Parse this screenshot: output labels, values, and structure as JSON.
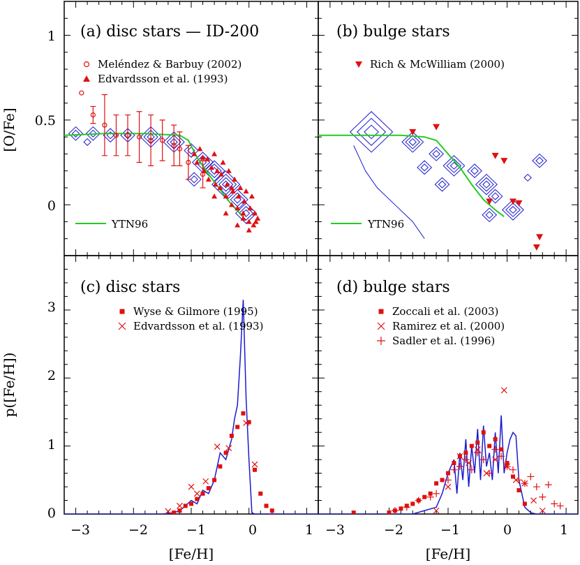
{
  "figure": {
    "xlabel": "[Fe/H]",
    "ylabel_top": "[O/Fe]",
    "ylabel_bottom": "p([Fe/H])",
    "colors": {
      "model": "#1a1ad0",
      "data": "#e01010",
      "ytn": "#22cc22",
      "axes": "#000000"
    }
  },
  "chart_data": [
    {
      "id": "a",
      "type": "scatter",
      "title": "(a) disc stars — ID-200",
      "xlim": [
        -3.2,
        1.2
      ],
      "ylim": [
        -0.3,
        1.2
      ],
      "yticks": [
        "0",
        "0.5",
        "1"
      ],
      "legend": [
        {
          "label": "Meléndez & Barbuy (2002)",
          "marker": "open-circle"
        },
        {
          "label": "Edvardsson et al. (1993)",
          "marker": "filled-triangle"
        }
      ],
      "line_label": "YTN96",
      "ytn96": [
        [
          -3.2,
          0.41
        ],
        [
          -2.5,
          0.42
        ],
        [
          -1.8,
          0.42
        ],
        [
          -1.2,
          0.41
        ],
        [
          -1.05,
          0.38
        ],
        [
          -0.9,
          0.28
        ],
        [
          -0.7,
          0.18
        ],
        [
          -0.5,
          0.09
        ],
        [
          -0.3,
          0.0
        ],
        [
          -0.1,
          -0.07
        ]
      ],
      "melendez": {
        "x": [
          -2.9,
          -2.7,
          -2.5,
          -2.3,
          -2.1,
          -1.9,
          -1.7,
          -1.5,
          -1.3,
          -1.2,
          -1.05,
          -0.8
        ],
        "y": [
          0.66,
          0.53,
          0.47,
          0.41,
          0.41,
          0.4,
          0.38,
          0.38,
          0.35,
          0.33,
          0.25,
          0.18
        ],
        "err": [
          0,
          0.05,
          0.18,
          0.12,
          0.12,
          0.15,
          0.15,
          0.12,
          0.12,
          0.1,
          0.1,
          0.08
        ]
      },
      "edvardsson": {
        "x": [
          -0.95,
          -0.9,
          -0.85,
          -0.8,
          -0.78,
          -0.72,
          -0.7,
          -0.65,
          -0.6,
          -0.58,
          -0.55,
          -0.5,
          -0.48,
          -0.45,
          -0.4,
          -0.38,
          -0.35,
          -0.3,
          -0.28,
          -0.25,
          -0.2,
          -0.18,
          -0.15,
          -0.1,
          -0.08,
          -0.05,
          0.0,
          0.02,
          0.05,
          0.08,
          0.1,
          0.12,
          0.15,
          -0.6,
          -0.4,
          -0.2,
          0.0,
          -0.3,
          -0.1
        ],
        "y": [
          0.3,
          0.25,
          0.33,
          0.28,
          0.2,
          0.27,
          0.15,
          0.22,
          0.3,
          0.12,
          0.2,
          0.1,
          0.18,
          0.25,
          0.05,
          0.12,
          0.2,
          0.0,
          0.08,
          0.15,
          -0.02,
          0.05,
          0.1,
          -0.05,
          0.02,
          0.08,
          -0.1,
          -0.02,
          0.05,
          -0.12,
          -0.05,
          -0.1,
          -0.08,
          0.05,
          -0.05,
          -0.12,
          -0.15,
          0.1,
          -0.08
        ]
      },
      "model_contours": [
        {
          "cx": -3.0,
          "cy": 0.42,
          "r": [
            0.02,
            0.04
          ]
        },
        {
          "cx": -2.7,
          "cy": 0.42,
          "r": [
            0.02,
            0.04
          ]
        },
        {
          "cx": -2.4,
          "cy": 0.41,
          "r": [
            0.02,
            0.04
          ]
        },
        {
          "cx": -2.1,
          "cy": 0.41,
          "r": [
            0.02,
            0.04
          ]
        },
        {
          "cx": -2.8,
          "cy": 0.37,
          "r": [
            0.02
          ]
        },
        {
          "cx": -1.7,
          "cy": 0.4,
          "r": [
            0.02,
            0.04,
            0.06
          ]
        },
        {
          "cx": -1.3,
          "cy": 0.37,
          "r": [
            0.02,
            0.04,
            0.06
          ]
        },
        {
          "cx": -1.0,
          "cy": 0.32,
          "r": [
            0.02,
            0.04
          ]
        },
        {
          "cx": -0.8,
          "cy": 0.25,
          "r": [
            0.02,
            0.04,
            0.06
          ]
        },
        {
          "cx": -0.95,
          "cy": 0.15,
          "r": [
            0.02,
            0.04
          ]
        },
        {
          "cx": -0.6,
          "cy": 0.2,
          "r": [
            0.02,
            0.04,
            0.06
          ]
        },
        {
          "cx": -0.4,
          "cy": 0.12,
          "r": [
            0.02,
            0.04,
            0.06,
            0.08
          ]
        },
        {
          "cx": -0.2,
          "cy": 0.03,
          "r": [
            0.02,
            0.04,
            0.06
          ]
        },
        {
          "cx": -0.05,
          "cy": -0.05,
          "r": [
            0.02,
            0.04,
            0.06
          ]
        }
      ]
    },
    {
      "id": "b",
      "type": "scatter",
      "title": "(b) bulge stars",
      "xlim": [
        -3.2,
        1.2
      ],
      "ylim": [
        -0.3,
        1.2
      ],
      "legend": [
        {
          "label": "Rich & McWilliam (2000)",
          "marker": "filled-down-triangle"
        }
      ],
      "line_label": "YTN96",
      "ytn96": [
        [
          -3.2,
          0.41
        ],
        [
          -2.5,
          0.41
        ],
        [
          -1.8,
          0.41
        ],
        [
          -1.4,
          0.4
        ],
        [
          -1.2,
          0.38
        ],
        [
          -1.0,
          0.3
        ],
        [
          -0.8,
          0.22
        ],
        [
          -0.6,
          0.12
        ],
        [
          -0.4,
          0.03
        ],
        [
          -0.2,
          -0.03
        ],
        [
          -0.05,
          -0.07
        ]
      ],
      "rich": {
        "x": [
          -1.6,
          -1.2,
          -0.2,
          -0.05,
          -0.3,
          0.1,
          0.2,
          0.55,
          0.5
        ],
        "y": [
          0.43,
          0.46,
          0.29,
          0.26,
          0.02,
          0.02,
          0.01,
          -0.19,
          -0.25
        ]
      },
      "model_contours": [
        {
          "cx": -2.3,
          "cy": 0.43,
          "r": [
            0.04,
            0.08,
            0.12
          ]
        },
        {
          "cx": -1.6,
          "cy": 0.37,
          "r": [
            0.02,
            0.04,
            0.06
          ]
        },
        {
          "cx": -1.2,
          "cy": 0.3,
          "r": [
            0.02,
            0.04
          ]
        },
        {
          "cx": -0.9,
          "cy": 0.23,
          "r": [
            0.02,
            0.04,
            0.06
          ]
        },
        {
          "cx": -1.4,
          "cy": 0.22,
          "r": [
            0.02,
            0.04
          ]
        },
        {
          "cx": -1.1,
          "cy": 0.12,
          "r": [
            0.02,
            0.04
          ]
        },
        {
          "cx": -0.55,
          "cy": 0.2,
          "r": [
            0.02,
            0.04
          ]
        },
        {
          "cx": -0.35,
          "cy": 0.12,
          "r": [
            0.02,
            0.04,
            0.06
          ]
        },
        {
          "cx": -0.2,
          "cy": 0.05,
          "r": [
            0.02,
            0.04
          ]
        },
        {
          "cx": 0.1,
          "cy": -0.03,
          "r": [
            0.02,
            0.04,
            0.06
          ]
        },
        {
          "cx": -0.3,
          "cy": -0.06,
          "r": [
            0.02,
            0.04
          ]
        },
        {
          "cx": 0.55,
          "cy": 0.26,
          "r": [
            0.02,
            0.04
          ]
        },
        {
          "cx": 0.35,
          "cy": 0.16,
          "r": [
            0.02
          ]
        }
      ]
    },
    {
      "id": "c",
      "type": "line",
      "title": "(c) disc stars",
      "xlim": [
        -3.2,
        1.2
      ],
      "ylim": [
        0,
        3.8
      ],
      "xticks": [
        "−3",
        "−2",
        "−1",
        "0",
        "1"
      ],
      "yticks": [
        "0",
        "1",
        "2",
        "3"
      ],
      "legend": [
        {
          "label": "Wyse & Gilmore (1995)",
          "marker": "filled-square"
        },
        {
          "label": "Edvardsson et al. (1993)",
          "marker": "cross"
        }
      ],
      "model": {
        "x": [
          -3.2,
          -2.0,
          -1.5,
          -1.3,
          -1.2,
          -1.1,
          -1.0,
          -0.9,
          -0.8,
          -0.7,
          -0.6,
          -0.5,
          -0.4,
          -0.3,
          -0.25,
          -0.2,
          -0.15,
          -0.1,
          -0.05,
          0.0,
          0.05,
          0.1,
          1.2
        ],
        "y": [
          0,
          0,
          0.0,
          0.02,
          0.05,
          0.12,
          0.2,
          0.15,
          0.35,
          0.3,
          0.5,
          0.9,
          0.8,
          1.1,
          1.4,
          1.6,
          2.3,
          3.15,
          1.7,
          0.8,
          0.02,
          0,
          0
        ]
      },
      "wyse": {
        "x": [
          -1.3,
          -1.2,
          -1.1,
          -1.0,
          -0.9,
          -0.8,
          -0.7,
          -0.6,
          -0.5,
          -0.4,
          -0.3,
          -0.2,
          -0.1,
          0.0,
          0.1,
          0.2,
          0.3,
          0.4
        ],
        "y": [
          0.02,
          0.05,
          0.12,
          0.15,
          0.22,
          0.3,
          0.38,
          0.5,
          0.7,
          0.9,
          1.15,
          1.28,
          1.48,
          1.35,
          0.65,
          0.3,
          0.12,
          0.05
        ]
      },
      "edvardsson": {
        "x": [
          -1.4,
          -1.2,
          -1.0,
          -0.9,
          -0.75,
          -0.55,
          -0.35,
          -0.05,
          0.1
        ],
        "y": [
          0.04,
          0.12,
          0.4,
          0.3,
          0.48,
          0.99,
          0.97,
          1.34,
          0.73
        ]
      }
    },
    {
      "id": "d",
      "type": "line",
      "title": "(d) bulge stars",
      "xlim": [
        -3.2,
        1.2
      ],
      "ylim": [
        0,
        3.8
      ],
      "xticks": [
        "−3",
        "−2",
        "−1",
        "0",
        "1"
      ],
      "legend": [
        {
          "label": "Zoccali et al. (2003)",
          "marker": "filled-square"
        },
        {
          "label": "Ramirez et al. (2000)",
          "marker": "cross"
        },
        {
          "label": "Sadler et al. (1996)",
          "marker": "plus"
        }
      ],
      "model": {
        "x": [
          -3.2,
          -2.0,
          -1.6,
          -1.4,
          -1.2,
          -1.1,
          -1.0,
          -0.9,
          -0.85,
          -0.8,
          -0.75,
          -0.7,
          -0.65,
          -0.6,
          -0.55,
          -0.5,
          -0.45,
          -0.4,
          -0.35,
          -0.3,
          -0.25,
          -0.2,
          -0.15,
          -0.1,
          -0.05,
          0.0,
          0.05,
          0.1,
          0.15,
          0.2,
          0.3,
          0.4,
          0.5,
          1.2
        ],
        "y": [
          0,
          0,
          0.0,
          0.05,
          0.1,
          0.3,
          0.6,
          0.8,
          0.3,
          0.9,
          0.5,
          1.1,
          0.4,
          1.0,
          0.6,
          1.25,
          0.5,
          1.3,
          0.7,
          0.9,
          0.5,
          1.2,
          0.6,
          1.45,
          0.6,
          0.9,
          1.1,
          1.2,
          1.15,
          0.5,
          0.1,
          0.02,
          0,
          0
        ]
      },
      "zoccali": {
        "x": [
          -2.6,
          -2.0,
          -1.9,
          -1.8,
          -1.7,
          -1.6,
          -1.5,
          -1.4,
          -1.3,
          -1.2,
          -1.1,
          -1.0,
          -0.9,
          -0.8,
          -0.7,
          -0.6,
          -0.5,
          -0.4,
          -0.3,
          -0.2,
          -0.1,
          0.0,
          0.1,
          0.2,
          0.3
        ],
        "y": [
          0.02,
          0.02,
          0.05,
          0.08,
          0.12,
          0.15,
          0.2,
          0.25,
          0.3,
          0.45,
          0.5,
          0.6,
          0.75,
          0.85,
          0.9,
          1.0,
          1.05,
          1.2,
          1.0,
          1.1,
          0.95,
          0.75,
          0.55,
          0.35,
          0.15
        ]
      },
      "ramirez": {
        "x": [
          -1.2,
          -1.0,
          -0.8,
          -0.65,
          -0.5,
          -0.35,
          -0.2,
          -0.05,
          0.0,
          0.15,
          0.3,
          0.45,
          0.6
        ],
        "y": [
          0.05,
          0.4,
          0.85,
          0.75,
          0.95,
          0.6,
          0.8,
          1.82,
          0.7,
          0.5,
          0.45,
          0.2,
          0.05
        ]
      },
      "sadler": {
        "x": [
          -1.9,
          -1.7,
          -1.5,
          -1.3,
          -1.2,
          -1.0,
          -0.9,
          -0.8,
          -0.7,
          -0.6,
          -0.5,
          -0.4,
          -0.3,
          -0.2,
          -0.1,
          0.0,
          0.1,
          0.2,
          0.3,
          0.4,
          0.5,
          0.6,
          0.7,
          0.8,
          0.9
        ],
        "y": [
          0.05,
          0.1,
          0.2,
          0.25,
          0.3,
          0.5,
          0.65,
          0.7,
          0.8,
          0.65,
          0.9,
          0.8,
          0.6,
          0.95,
          0.85,
          0.7,
          0.65,
          0.5,
          0.45,
          0.55,
          0.4,
          0.25,
          0.43,
          0.15,
          0.12
        ]
      }
    }
  ]
}
